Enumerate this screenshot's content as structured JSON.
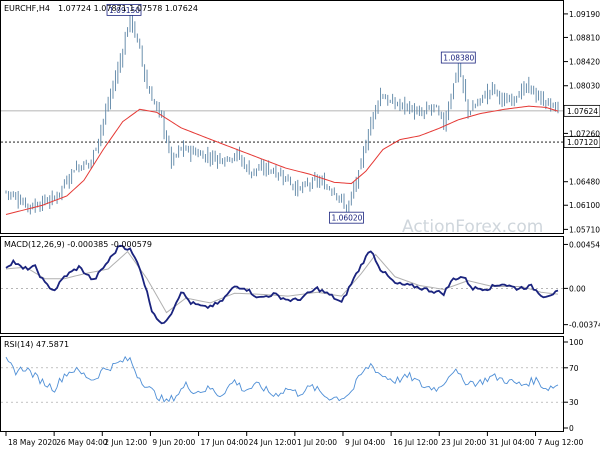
{
  "chart_data": [
    {
      "panel": "price",
      "type": "line",
      "symbol_label": "EURCHF,H4",
      "ohlc_header": "1.07724 1.07871 1.07578 1.07624",
      "watermark": "ActionForex.com",
      "ylim": [
        1.057,
        1.0935
      ],
      "y_ticks": [
        "1.09190",
        "1.08810",
        "1.08420",
        "1.08030",
        "1.07260",
        "1.06480",
        "1.06100",
        "1.05710"
      ],
      "y_tick_values": [
        1.0919,
        1.0881,
        1.0842,
        1.0803,
        1.0726,
        1.0648,
        1.061,
        1.0571
      ],
      "current_price": {
        "label": "1.07624",
        "value": 1.07624
      },
      "support_line": {
        "label": "1.07120",
        "value": 1.0712
      },
      "annotations": [
        {
          "text": "1.09150",
          "x_index": 51,
          "value": 1.0915
        },
        {
          "text": "1.08380",
          "x_index": 186,
          "value": 1.0838
        },
        {
          "text": "1.06020",
          "x_index": 140,
          "value": 1.0602
        }
      ],
      "series": [
        {
          "name": "",
          "role": "price",
          "color": "#5b84a5",
          "anchors": [
            [
              0,
              1.0632
            ],
            [
              10,
              1.0608
            ],
            [
              20,
              1.0621
            ],
            [
              28,
              1.067
            ],
            [
              35,
              1.068
            ],
            [
              42,
              1.0775
            ],
            [
              47,
              1.0845
            ],
            [
              51,
              1.0915
            ],
            [
              55,
              1.086
            ],
            [
              58,
              1.08
            ],
            [
              64,
              1.075
            ],
            [
              68,
              1.068
            ],
            [
              72,
              1.0702
            ],
            [
              80,
              1.0692
            ],
            [
              88,
              1.0685
            ],
            [
              95,
              1.0692
            ],
            [
              100,
              1.0665
            ],
            [
              108,
              1.067
            ],
            [
              115,
              1.0655
            ],
            [
              120,
              1.0635
            ],
            [
              128,
              1.065
            ],
            [
              136,
              1.063
            ],
            [
              140,
              1.0602
            ],
            [
              145,
              1.066
            ],
            [
              150,
              1.0745
            ],
            [
              154,
              1.079
            ],
            [
              158,
              1.0775
            ],
            [
              165,
              1.077
            ],
            [
              170,
              1.0755
            ],
            [
              176,
              1.077
            ],
            [
              180,
              1.074
            ],
            [
              186,
              1.0838
            ],
            [
              190,
              1.076
            ],
            [
              195,
              1.078
            ],
            [
              200,
              1.08
            ],
            [
              205,
              1.0775
            ],
            [
              210,
              1.079
            ],
            [
              215,
              1.08
            ],
            [
              220,
              1.078
            ],
            [
              225,
              1.077
            ],
            [
              227,
              1.0762
            ]
          ]
        },
        {
          "name": "",
          "role": "moving-average",
          "color": "#e53935",
          "anchors": [
            [
              0,
              1.0595
            ],
            [
              15,
              1.061
            ],
            [
              25,
              1.0625
            ],
            [
              32,
              1.065
            ],
            [
              40,
              1.07
            ],
            [
              48,
              1.0745
            ],
            [
              55,
              1.0765
            ],
            [
              62,
              1.076
            ],
            [
              72,
              1.0735
            ],
            [
              85,
              1.0715
            ],
            [
              95,
              1.07
            ],
            [
              105,
              1.0685
            ],
            [
              115,
              1.067
            ],
            [
              125,
              1.066
            ],
            [
              135,
              1.0647
            ],
            [
              142,
              1.0645
            ],
            [
              148,
              1.0665
            ],
            [
              155,
              1.07
            ],
            [
              162,
              1.0716
            ],
            [
              170,
              1.0722
            ],
            [
              178,
              1.0734
            ],
            [
              186,
              1.0748
            ],
            [
              195,
              1.0758
            ],
            [
              205,
              1.0765
            ],
            [
              215,
              1.077
            ],
            [
              222,
              1.0768
            ],
            [
              227,
              1.0762
            ]
          ]
        }
      ]
    },
    {
      "panel": "macd",
      "type": "line",
      "label": "MACD(12,26,9) -0.000385 -0.000579",
      "ylim": [
        -0.0043,
        0.005
      ],
      "y_ticks": [
        "0.004541",
        "0.00",
        "-0.003745"
      ],
      "y_tick_values": [
        0.004541,
        0.0,
        -0.003745
      ],
      "series": [
        {
          "name": "",
          "role": "macd",
          "color": "#1a237e",
          "anchors": [
            [
              0,
              0.0022
            ],
            [
              3,
              0.0028
            ],
            [
              7,
              0.002
            ],
            [
              12,
              0.0022
            ],
            [
              16,
              0.0005
            ],
            [
              20,
              -0.0002
            ],
            [
              24,
              0.0012
            ],
            [
              30,
              0.0022
            ],
            [
              36,
              0.0008
            ],
            [
              42,
              0.0028
            ],
            [
              47,
              0.0045
            ],
            [
              51,
              0.004
            ],
            [
              55,
              0.0022
            ],
            [
              60,
              -0.0022
            ],
            [
              64,
              -0.0038
            ],
            [
              68,
              -0.0025
            ],
            [
              72,
              -0.0003
            ],
            [
              76,
              -0.0015
            ],
            [
              82,
              -0.002
            ],
            [
              88,
              -0.0015
            ],
            [
              94,
              0.0002
            ],
            [
              98,
              0.0001
            ],
            [
              104,
              -0.001
            ],
            [
              110,
              -0.0006
            ],
            [
              116,
              -0.0012
            ],
            [
              120,
              -0.0012
            ],
            [
              128,
              0.0
            ],
            [
              134,
              -0.0008
            ],
            [
              138,
              -0.0015
            ],
            [
              143,
              0.001
            ],
            [
              147,
              0.0028
            ],
            [
              150,
              0.004
            ],
            [
              154,
              0.002
            ],
            [
              160,
              0.0005
            ],
            [
              168,
              0.0002
            ],
            [
              176,
              -0.0003
            ],
            [
              180,
              -0.0005
            ],
            [
              184,
              0.001
            ],
            [
              188,
              0.0012
            ],
            [
              192,
              0.0
            ],
            [
              198,
              0.0
            ],
            [
              204,
              0.0005
            ],
            [
              210,
              0.0
            ],
            [
              216,
              0.0002
            ],
            [
              221,
              -0.0008
            ],
            [
              227,
              -0.0004
            ]
          ]
        },
        {
          "name": "",
          "role": "signal",
          "color": "#b0b0b0",
          "anchors": [
            [
              0,
              0.002
            ],
            [
              8,
              0.0022
            ],
            [
              16,
              0.001
            ],
            [
              24,
              0.001
            ],
            [
              32,
              0.0015
            ],
            [
              42,
              0.002
            ],
            [
              50,
              0.0038
            ],
            [
              58,
              0.001
            ],
            [
              66,
              -0.0025
            ],
            [
              74,
              -0.001
            ],
            [
              84,
              -0.0015
            ],
            [
              94,
              -0.0005
            ],
            [
              104,
              -0.0006
            ],
            [
              116,
              -0.0008
            ],
            [
              128,
              -0.0004
            ],
            [
              138,
              -0.0008
            ],
            [
              146,
              0.0015
            ],
            [
              152,
              0.0035
            ],
            [
              160,
              0.0012
            ],
            [
              170,
              0.0003
            ],
            [
              180,
              -0.0001
            ],
            [
              190,
              0.0008
            ],
            [
              200,
              0.0002
            ],
            [
              212,
              0.0002
            ],
            [
              220,
              -0.0004
            ],
            [
              227,
              -0.0006
            ]
          ]
        }
      ]
    },
    {
      "panel": "rsi",
      "type": "line",
      "label": "RSI(14) 47.5871",
      "ylim": [
        0,
        100
      ],
      "y_ticks": [
        "100",
        "70",
        "30",
        "0"
      ],
      "y_tick_values": [
        100,
        70,
        30,
        0
      ],
      "series": [
        {
          "name": "",
          "role": "rsi",
          "color": "#4f8fd6",
          "anchors": [
            [
              0,
              78
            ],
            [
              4,
              66
            ],
            [
              8,
              70
            ],
            [
              12,
              60
            ],
            [
              16,
              52
            ],
            [
              20,
              46
            ],
            [
              24,
              62
            ],
            [
              28,
              68
            ],
            [
              32,
              62
            ],
            [
              36,
              56
            ],
            [
              40,
              68
            ],
            [
              44,
              72
            ],
            [
              48,
              78
            ],
            [
              51,
              80
            ],
            [
              54,
              62
            ],
            [
              58,
              48
            ],
            [
              62,
              38
            ],
            [
              66,
              30
            ],
            [
              70,
              38
            ],
            [
              74,
              50
            ],
            [
              78,
              42
            ],
            [
              84,
              46
            ],
            [
              88,
              38
            ],
            [
              94,
              55
            ],
            [
              98,
              44
            ],
            [
              104,
              50
            ],
            [
              110,
              38
            ],
            [
              116,
              46
            ],
            [
              120,
              40
            ],
            [
              126,
              48
            ],
            [
              132,
              36
            ],
            [
              138,
              35
            ],
            [
              142,
              42
            ],
            [
              146,
              62
            ],
            [
              150,
              74
            ],
            [
              154,
              62
            ],
            [
              160,
              55
            ],
            [
              166,
              60
            ],
            [
              172,
              48
            ],
            [
              178,
              46
            ],
            [
              184,
              68
            ],
            [
              188,
              55
            ],
            [
              194,
              52
            ],
            [
              200,
              60
            ],
            [
              206,
              55
            ],
            [
              212,
              50
            ],
            [
              218,
              56
            ],
            [
              222,
              46
            ],
            [
              227,
              50
            ]
          ]
        }
      ]
    }
  ],
  "x_axis": {
    "n_bars": 228,
    "ticks": [
      {
        "label": "18 May 2020",
        "index": 0
      },
      {
        "label": "26 May 04:00",
        "index": 30
      },
      {
        "label": "2 Jun 12:00",
        "index": 60
      },
      {
        "label": "9 Jun 20:00",
        "index": 90
      },
      {
        "label": "17 Jun 04:00",
        "index": 120
      },
      {
        "label": "24 Jun 12:00",
        "index": 150
      },
      {
        "label": "1 Jul 20:00",
        "index": 180
      },
      {
        "label": "9 Jul 04:00",
        "index": 210
      },
      {
        "label": "16 Jul 12:00",
        "index": 240
      },
      {
        "label": "23 Jul 20:00",
        "index": 270
      },
      {
        "label": "31 Jul 04:00",
        "index": 300
      },
      {
        "label": "7 Aug 12:00",
        "index": 330
      }
    ],
    "tick_count_total": 345
  }
}
